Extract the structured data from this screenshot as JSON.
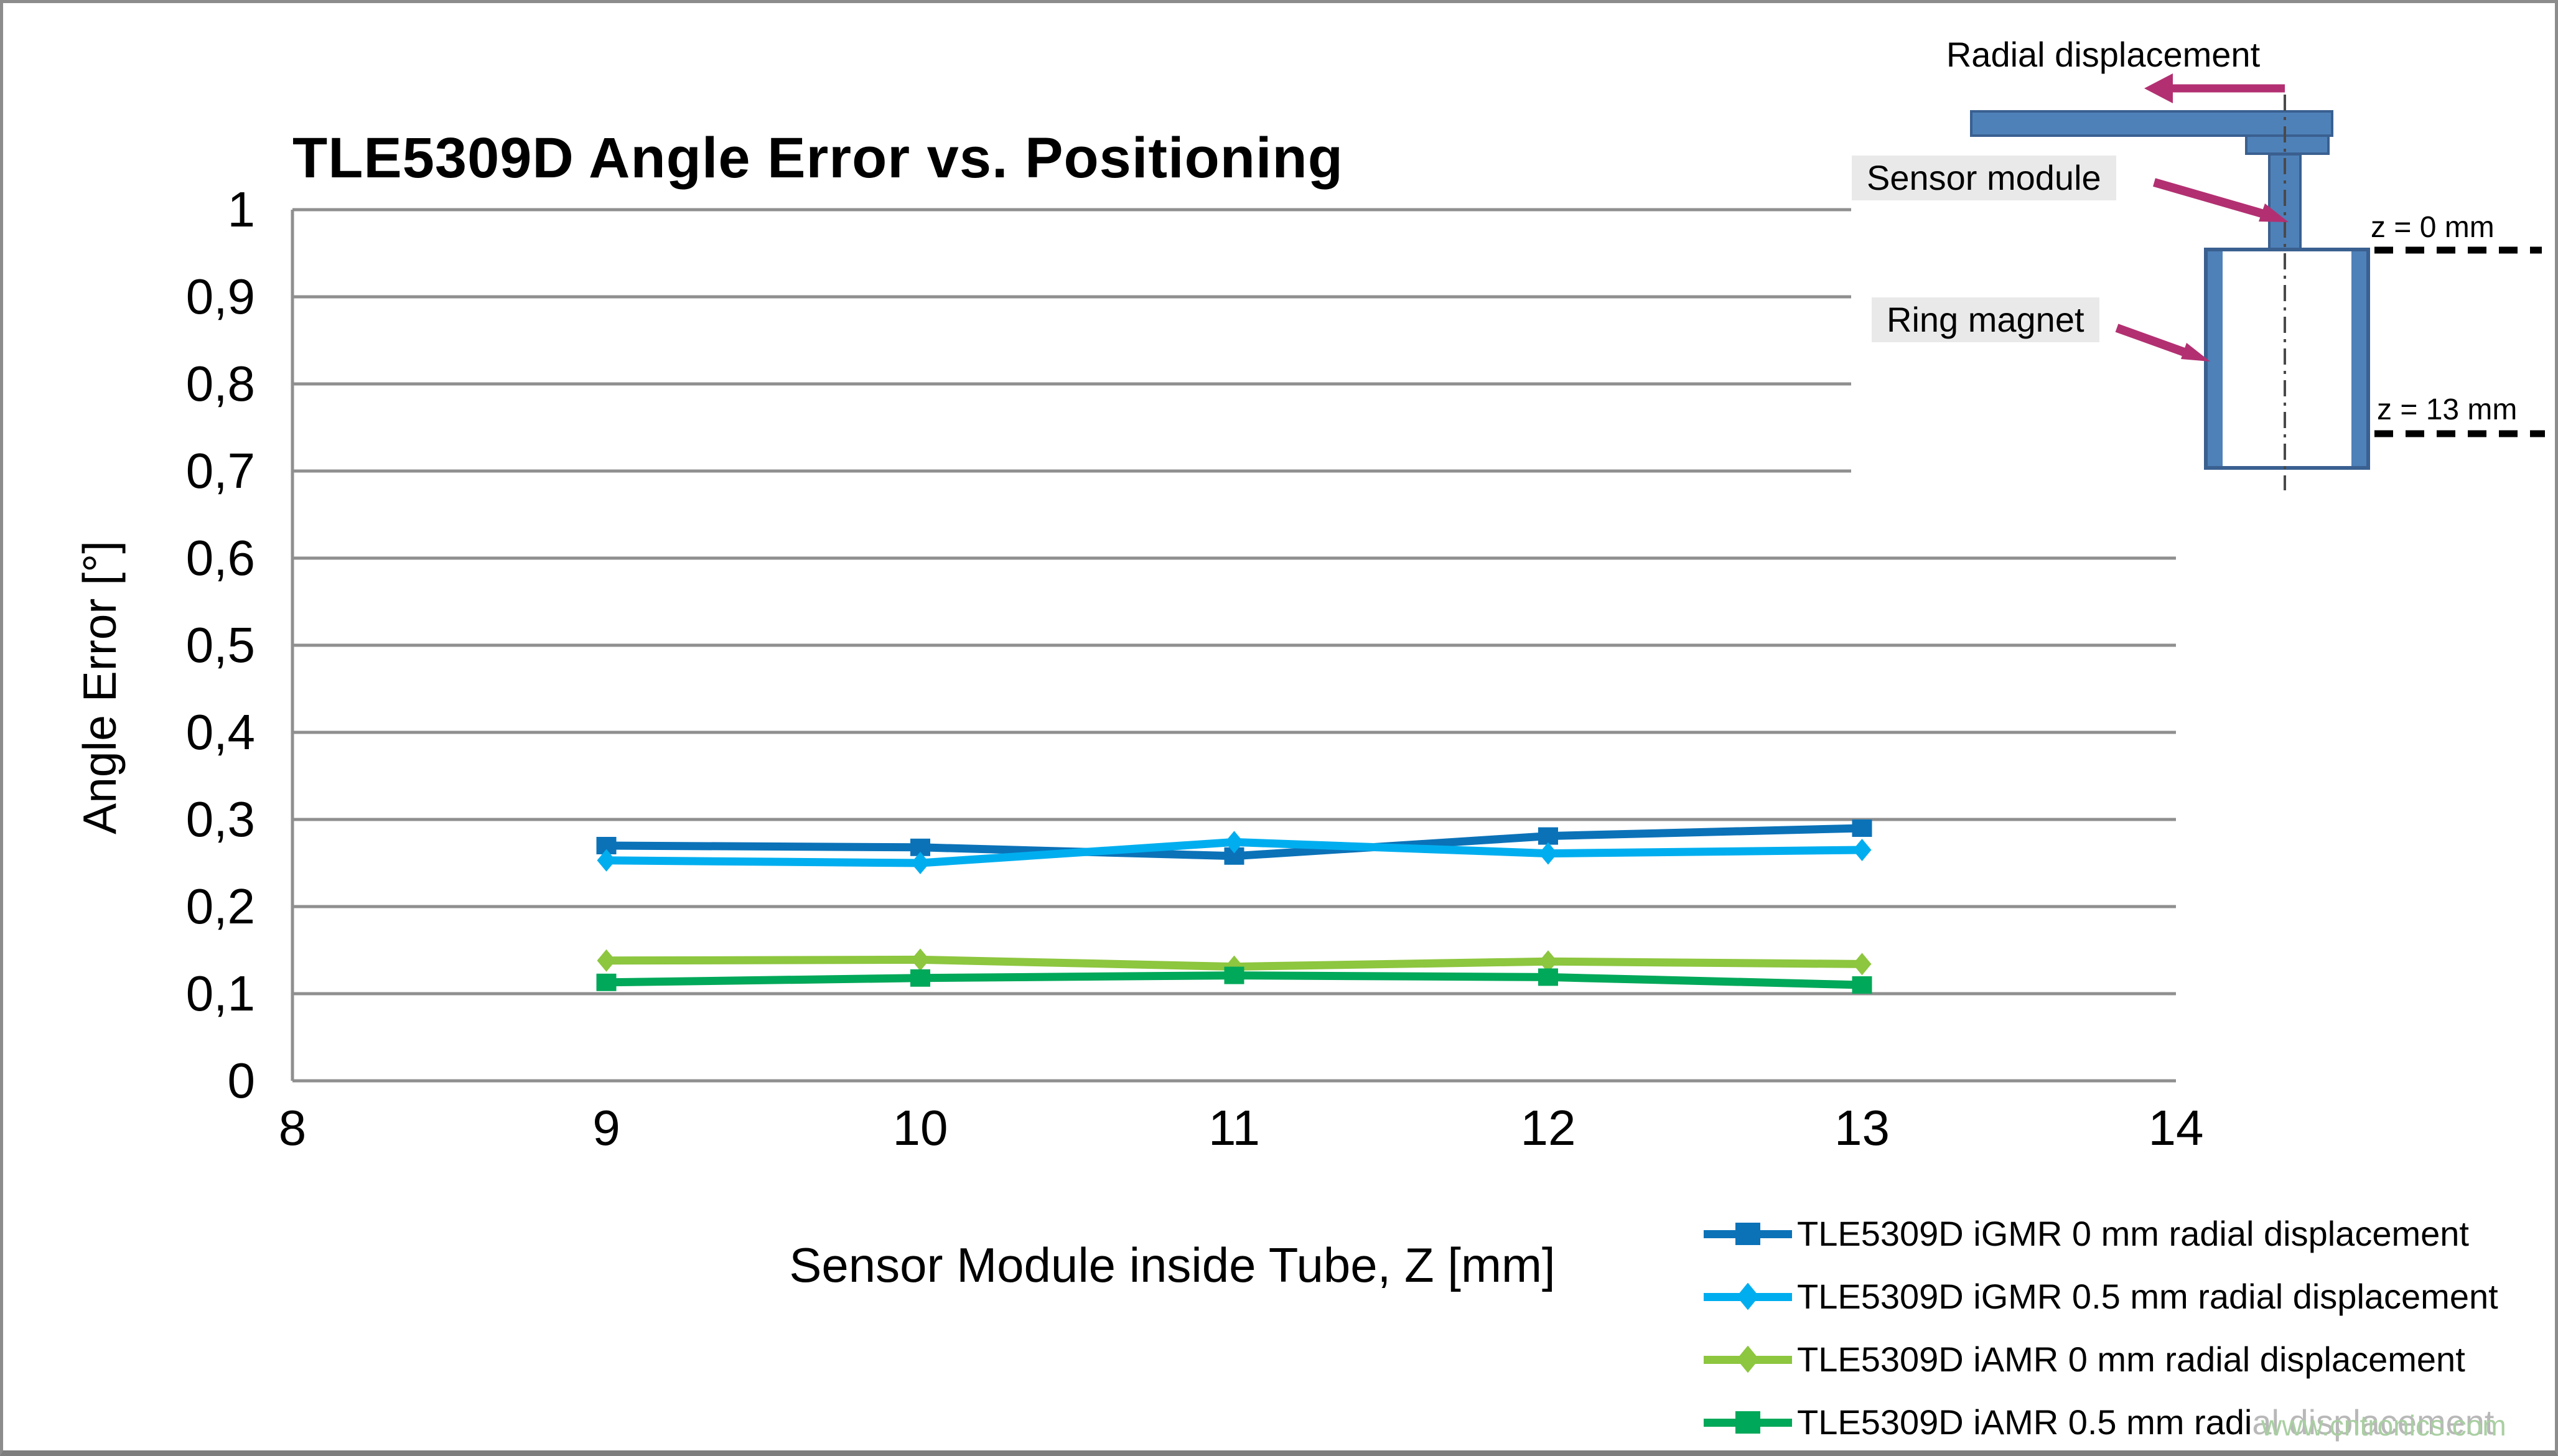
{
  "figure": {
    "watermark": "www.cntronics.com"
  },
  "chart_data": {
    "type": "line",
    "title": "TLE5309D Angle Error vs. Positioning",
    "xlabel": "Sensor Module inside Tube, Z [mm]",
    "ylabel": "Angle Error [°]",
    "xlim": [
      8,
      14
    ],
    "ylim": [
      0,
      1
    ],
    "grid": "horizontal-only",
    "legend_position": "bottom-right",
    "x_ticks": [
      8,
      9,
      10,
      11,
      12,
      13,
      14
    ],
    "y_ticks": [
      {
        "value": 0,
        "label": "0"
      },
      {
        "value": 0.1,
        "label": "0,1"
      },
      {
        "value": 0.2,
        "label": "0,2"
      },
      {
        "value": 0.3,
        "label": "0,3"
      },
      {
        "value": 0.4,
        "label": "0,4"
      },
      {
        "value": 0.5,
        "label": "0,5"
      },
      {
        "value": 0.6,
        "label": "0,6"
      },
      {
        "value": 0.7,
        "label": "0,7"
      },
      {
        "value": 0.8,
        "label": "0,8"
      },
      {
        "value": 0.9,
        "label": "0,9"
      },
      {
        "value": 1,
        "label": "1"
      }
    ],
    "x": [
      9,
      10,
      11,
      12,
      13
    ],
    "series": [
      {
        "name": "TLE5309D iGMR 0 mm radial displacement",
        "color": "#0b72b8",
        "marker": "square",
        "values": [
          0.27,
          0.268,
          0.258,
          0.281,
          0.29
        ]
      },
      {
        "name": "TLE5309D iGMR 0.5 mm radial displacement",
        "color": "#00aeef",
        "marker": "diamond",
        "values": [
          0.253,
          0.25,
          0.274,
          0.261,
          0.265
        ]
      },
      {
        "name": "TLE5309D iAMR 0 mm radial displacement",
        "color": "#8dc63f",
        "marker": "diamond",
        "values": [
          0.138,
          0.139,
          0.131,
          0.137,
          0.134
        ]
      },
      {
        "name": "TLE5309D iAMR 0.5 mm radial displacement",
        "color": "#00a859",
        "marker": "square",
        "values": [
          0.113,
          0.118,
          0.121,
          0.119,
          0.11
        ]
      }
    ]
  },
  "inset": {
    "radial_label": "Radial displacement",
    "sensor_label": "Sensor module",
    "magnet_label": "Ring magnet",
    "z0_label": "z = 0 mm",
    "z13_label": "z = 13 mm"
  },
  "colors": {
    "grid": "#8f8f8f",
    "steel_blue": "#4e81b8",
    "steel_blue_dark": "#3a6090",
    "magenta": "#b23071",
    "label_bg": "#e9e9e9",
    "watermark": "#a9cfa2",
    "frame": "#8c8c8c"
  }
}
